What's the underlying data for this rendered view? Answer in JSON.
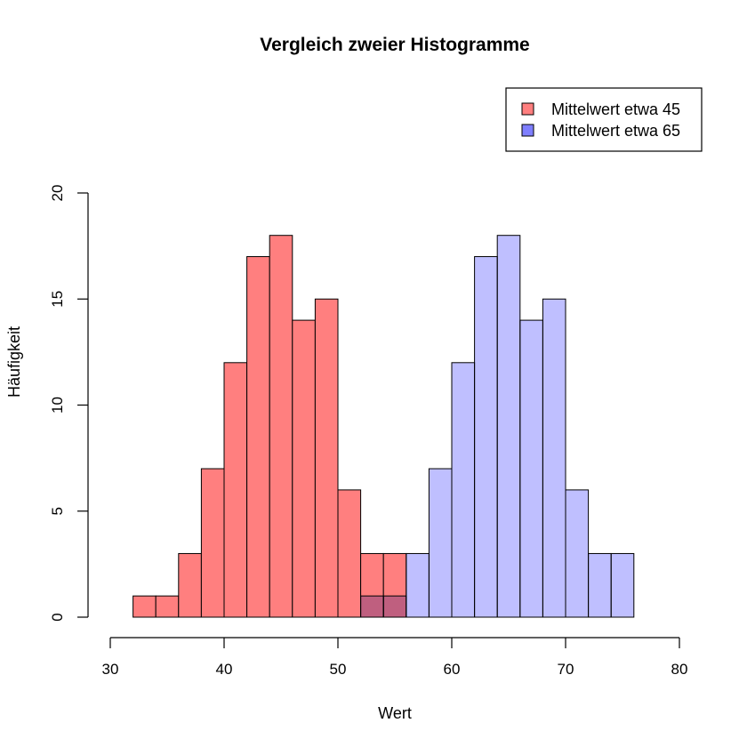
{
  "chart_data": {
    "type": "bar",
    "title": "Vergleich zweier Histogramme",
    "xlabel": "Wert",
    "ylabel": "Häufigkeit",
    "xlim": [
      30,
      80
    ],
    "ylim": [
      0,
      20
    ],
    "xticks": [
      "30",
      "40",
      "50",
      "60",
      "70",
      "80"
    ],
    "yticks": [
      "0",
      "5",
      "10",
      "15",
      "20"
    ],
    "bin_width": 2,
    "legend_position": "top-right",
    "series": [
      {
        "name": "Mittelwert etwa 45",
        "color": "#ff7f7f",
        "bins": [
          {
            "x0": 32,
            "x1": 34,
            "count": 1
          },
          {
            "x0": 34,
            "x1": 36,
            "count": 1
          },
          {
            "x0": 36,
            "x1": 38,
            "count": 3
          },
          {
            "x0": 38,
            "x1": 40,
            "count": 7
          },
          {
            "x0": 40,
            "x1": 42,
            "count": 12
          },
          {
            "x0": 42,
            "x1": 44,
            "count": 17
          },
          {
            "x0": 44,
            "x1": 46,
            "count": 18
          },
          {
            "x0": 46,
            "x1": 48,
            "count": 14
          },
          {
            "x0": 48,
            "x1": 50,
            "count": 15
          },
          {
            "x0": 50,
            "x1": 52,
            "count": 6
          },
          {
            "x0": 52,
            "x1": 54,
            "count": 3
          },
          {
            "x0": 54,
            "x1": 56,
            "count": 3
          }
        ]
      },
      {
        "name": "Mittelwert etwa 65",
        "color": "#7f7fff",
        "bins": [
          {
            "x0": 52,
            "x1": 54,
            "count": 1
          },
          {
            "x0": 54,
            "x1": 56,
            "count": 1
          },
          {
            "x0": 56,
            "x1": 58,
            "count": 3
          },
          {
            "x0": 58,
            "x1": 60,
            "count": 7
          },
          {
            "x0": 60,
            "x1": 62,
            "count": 12
          },
          {
            "x0": 62,
            "x1": 64,
            "count": 17
          },
          {
            "x0": 64,
            "x1": 66,
            "count": 18
          },
          {
            "x0": 66,
            "x1": 68,
            "count": 14
          },
          {
            "x0": 68,
            "x1": 70,
            "count": 15
          },
          {
            "x0": 70,
            "x1": 72,
            "count": 6
          },
          {
            "x0": 72,
            "x1": 74,
            "count": 3
          },
          {
            "x0": 74,
            "x1": 76,
            "count": 3
          }
        ]
      }
    ]
  }
}
